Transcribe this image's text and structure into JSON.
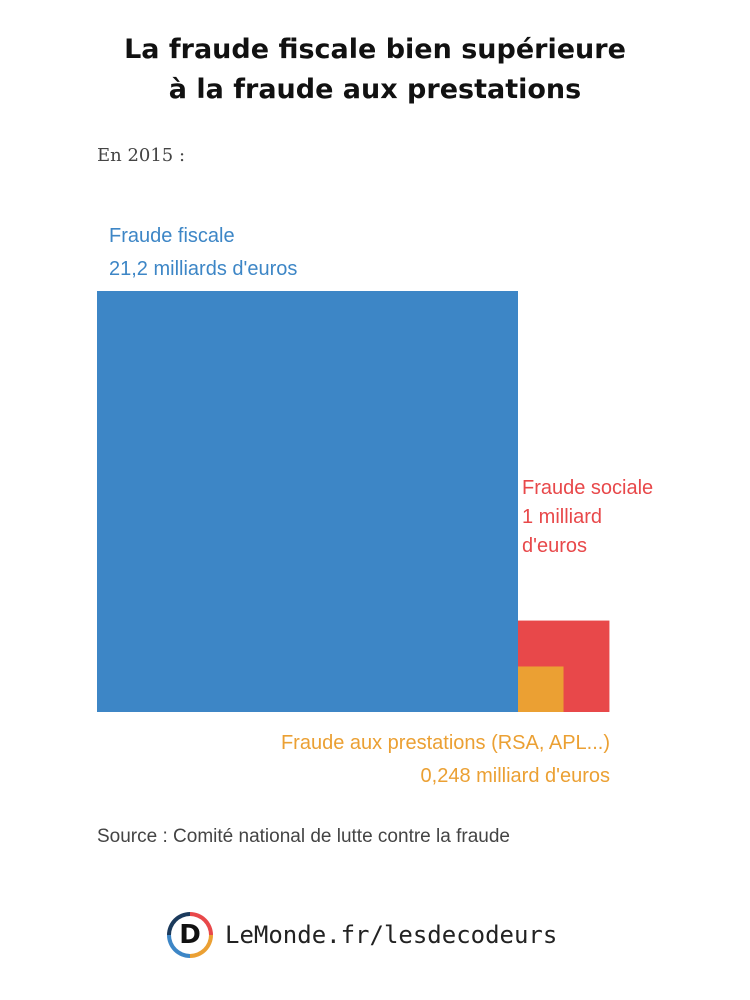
{
  "header": {
    "title_line1": "La fraude fiscale bien supérieure",
    "title_line2": "à la fraude aux prestations",
    "subtitle": "En 2015 :"
  },
  "chart_data": {
    "type": "proportional-area squares",
    "unit": "milliards d'euros",
    "items": [
      {
        "key": "fiscale",
        "label": "Fraude fiscale",
        "value_text": "21,2 milliards d'euros",
        "value": 21.2,
        "color": "#3d86c6"
      },
      {
        "key": "sociale",
        "label": "Fraude sociale",
        "value_text_line1": "1 milliard",
        "value_text_line2": "d'euros",
        "value": 1.0,
        "color": "#e8484a"
      },
      {
        "key": "prestations",
        "label": "Fraude aux prestations (RSA, APL...)",
        "value_text": "0,248 milliard d'euros",
        "value": 0.248,
        "color": "#eba033"
      }
    ]
  },
  "footer": {
    "source": "Source : Comité national de lutte contre la fraude",
    "brand_letter": "D",
    "brand_text": "LeMonde.fr/lesdecodeurs"
  }
}
